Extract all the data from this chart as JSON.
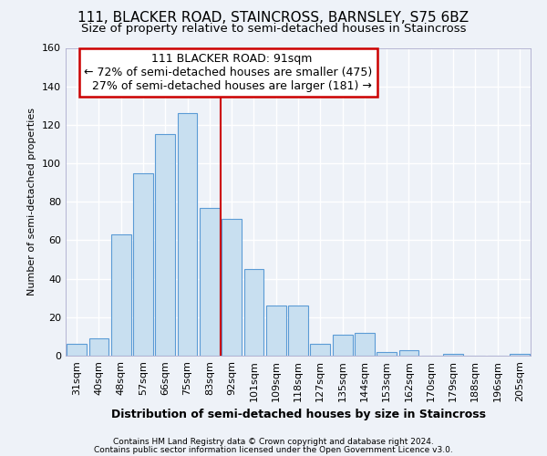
{
  "title1": "111, BLACKER ROAD, STAINCROSS, BARNSLEY, S75 6BZ",
  "title2": "Size of property relative to semi-detached houses in Staincross",
  "xlabel": "Distribution of semi-detached houses by size in Staincross",
  "ylabel": "Number of semi-detached properties",
  "footer1": "Contains HM Land Registry data © Crown copyright and database right 2024.",
  "footer2": "Contains public sector information licensed under the Open Government Licence v3.0.",
  "categories": [
    "31sqm",
    "40sqm",
    "48sqm",
    "57sqm",
    "66sqm",
    "75sqm",
    "83sqm",
    "92sqm",
    "101sqm",
    "109sqm",
    "118sqm",
    "127sqm",
    "135sqm",
    "144sqm",
    "153sqm",
    "162sqm",
    "170sqm",
    "179sqm",
    "188sqm",
    "196sqm",
    "205sqm"
  ],
  "bar_values": [
    6,
    9,
    63,
    95,
    115,
    126,
    77,
    71,
    45,
    26,
    26,
    6,
    11,
    12,
    2,
    3,
    0,
    1,
    0,
    0,
    1
  ],
  "bar_color_fill": "#c8dff0",
  "bar_color_edge": "#5b9bd5",
  "property_label": "111 BLACKER ROAD: 91sqm",
  "pct_smaller": 72,
  "count_smaller": 475,
  "pct_larger": 27,
  "count_larger": 181,
  "vline_color": "#cc0000",
  "vline_index": 7,
  "annotation_box_color": "#cc0000",
  "ylim": [
    0,
    160
  ],
  "yticks": [
    0,
    20,
    40,
    60,
    80,
    100,
    120,
    140,
    160
  ],
  "background_color": "#eef2f8",
  "plot_bg_color": "#eef2f8",
  "grid_color": "#ffffff",
  "title1_fontsize": 11,
  "title2_fontsize": 9.5,
  "annot_fontsize": 9,
  "xlabel_fontsize": 9,
  "ylabel_fontsize": 8,
  "footer_fontsize": 6.5,
  "xtick_fontsize": 8,
  "ytick_fontsize": 8
}
